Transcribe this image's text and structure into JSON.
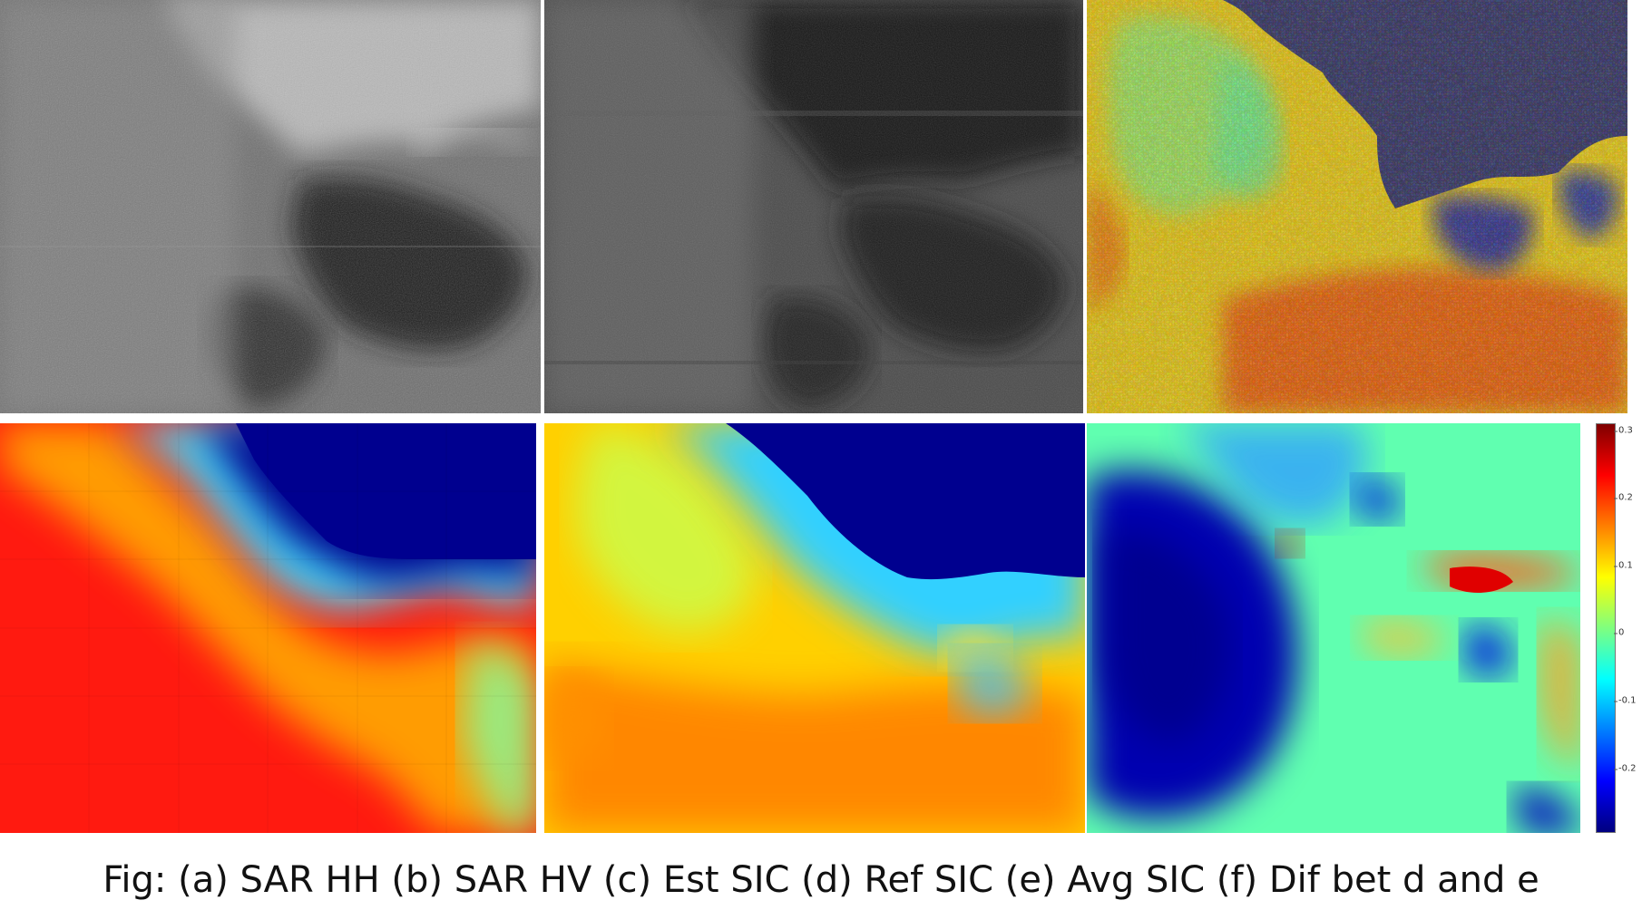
{
  "caption": "Fig: (a) SAR HH (b) SAR HV (c) Est SIC (d) Ref SIC (e) Avg SIC (f) Dif bet d and e",
  "panels": [
    {
      "id": "a",
      "content": "SAR HH backscatter image",
      "style": "grayscale"
    },
    {
      "id": "b",
      "content": "SAR HV backscatter image",
      "style": "grayscale"
    },
    {
      "id": "c",
      "content": "Estimated sea ice concentration map",
      "style": "jet"
    },
    {
      "id": "d",
      "content": "Reference sea ice concentration map",
      "style": "jet"
    },
    {
      "id": "e",
      "content": "Average sea ice concentration map",
      "style": "jet"
    },
    {
      "id": "f",
      "content": "Difference map between d and e",
      "style": "jet"
    }
  ],
  "colorbar": {
    "colormap": "jet",
    "ticks": [
      "0.3",
      "0.2",
      "0.1",
      "0",
      "-0.1",
      "-0.2"
    ]
  },
  "colors": {
    "jet_dark_blue": "#00007f",
    "jet_blue": "#0000ff",
    "jet_cyan": "#00ffff",
    "jet_yellow": "#ffff00",
    "jet_red": "#ff0000",
    "jet_dark_red": "#7f0000"
  }
}
